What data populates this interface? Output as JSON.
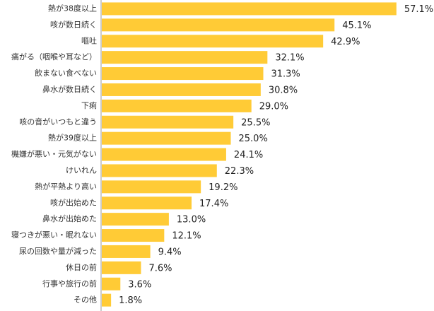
{
  "chart_data": {
    "type": "bar",
    "orientation": "horizontal",
    "unit": "%",
    "bar_color": "#FFCB36",
    "axis_color": "#999999",
    "xlim": [
      0,
      60
    ],
    "categories": [
      "熱が38度以上",
      "咳が数日続く",
      "嘔吐",
      "痛がる（咽喉や耳など）",
      "飲まない食べない",
      "鼻水が数日続く",
      "下痢",
      "咳の音がいつもと違う",
      "熱が39度以上",
      "機嫌が悪い・元気がない",
      "けいれん",
      "熱が平熱より高い",
      "咳が出始めた",
      "鼻水が出始めた",
      "寝つきが悪い・眠れない",
      "尿の回数や量が減った",
      "休日の前",
      "行事や旅行の前",
      "その他"
    ],
    "values": [
      57.1,
      45.1,
      42.9,
      32.1,
      31.3,
      30.8,
      29.0,
      25.5,
      25.0,
      24.1,
      22.3,
      19.2,
      17.4,
      13.0,
      12.1,
      9.4,
      7.6,
      3.6,
      1.8
    ],
    "value_labels": [
      "57.1%",
      "45.1%",
      "42.9%",
      "32.1%",
      "31.3%",
      "30.8%",
      "29.0%",
      "25.5%",
      "25.0%",
      "24.1%",
      "22.3%",
      "19.2%",
      "17.4%",
      "13.0%",
      "12.1%",
      "9.4%",
      "7.6%",
      "3.6%",
      "1.8%"
    ]
  }
}
